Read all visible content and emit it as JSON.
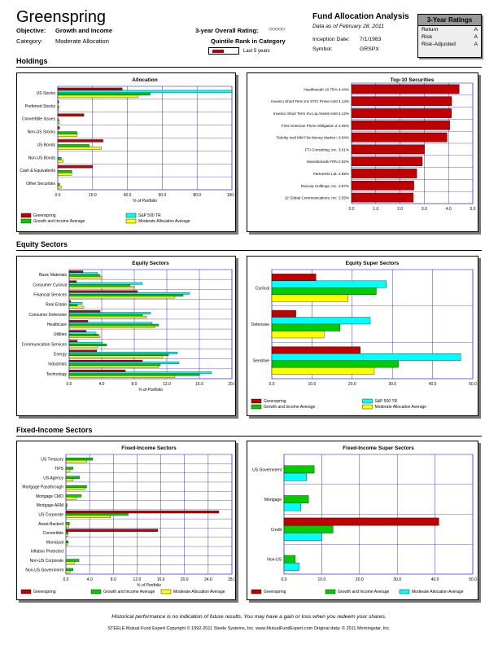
{
  "header": {
    "fund_name": "Greenspring",
    "objective_label": "Objective:",
    "objective_value": "Growth and Income",
    "category_label": "Category:",
    "category_value": "Moderate Allocation",
    "overall_rating_label": "3-year Overall Rating:",
    "overall_rating_stars": "○○○○○",
    "quintile_label": "Quintile Rank in Category",
    "quintile_last": "Last 5 years",
    "report_title": "Fund Allocation Analysis",
    "data_date": "Data as of February 28, 2011",
    "inception_label": "Inception Date:",
    "inception_value": "7/1/1983",
    "symbol_label": "Symbol:",
    "symbol_value": "GRSPX"
  },
  "ratings": {
    "title": "3-Year Ratings",
    "rows": [
      {
        "label": "Return",
        "value": "A"
      },
      {
        "label": "Risk",
        "value": "A"
      },
      {
        "label": "Risk-Adjusted",
        "value": "A"
      }
    ]
  },
  "sections": {
    "holdings": "Holdings",
    "equity": "Equity Sectors",
    "fixed": "Fixed-Income Sectors"
  },
  "colors": {
    "greenspring": "#c00000",
    "sp500": "#00ffff",
    "growth_income": "#00cc00",
    "moderate": "#ffff00"
  },
  "footer": {
    "disclaimer": "Historical performance is no indication of future results.  You may have a gain or loss when you redeem your shares.",
    "credits": "STEELE Mutual Fund Expert        Copyright © 1992-2011 Steele Systems, Inc.        www.MutualFundExpert.com        Original data: © 2011 Morningstar, Inc."
  },
  "chart_data": [
    {
      "id": "allocation",
      "type": "bar",
      "orientation": "horizontal",
      "title": "Allocation",
      "xlabel": "% of Portfolio",
      "xlim": [
        0,
        100
      ],
      "xticks": [
        "0.0",
        "20.0",
        "40.0",
        "60.0",
        "80.0",
        "100.0"
      ],
      "categories": [
        "US Stocks",
        "Preferred Stocks",
        "Convertible Issues",
        "Non-US Stocks",
        "US Bonds",
        "Non-US Bonds",
        "Cash & Equivalents",
        "Other Securities"
      ],
      "series": [
        {
          "name": "Greenspring",
          "color": "#c00000",
          "values": [
            37,
            0.5,
            15,
            1,
            26,
            0,
            20,
            0
          ]
        },
        {
          "name": "S&P 500 TR",
          "color": "#00ffff",
          "values": [
            100,
            0,
            0,
            0,
            0,
            0,
            0,
            0
          ]
        },
        {
          "name": "Growth and Income Average",
          "color": "#00cc00",
          "values": [
            53,
            0.5,
            0.5,
            11,
            18,
            2,
            8,
            1
          ]
        },
        {
          "name": "Moderate Allocation Average",
          "color": "#ffff00",
          "values": [
            46,
            0.5,
            1,
            11,
            25,
            3,
            8,
            2
          ]
        }
      ],
      "legend": [
        "Greenspring",
        "S&P 500 TR",
        "Growth and Income Average",
        "Moderate Allocation Average"
      ]
    },
    {
      "id": "top10",
      "type": "bar",
      "orientation": "horizontal",
      "title": "Top-10 Securities",
      "xlim": [
        0,
        5
      ],
      "xticks": [
        "0.0",
        "1.0",
        "2.0",
        "3.0",
        "4.0",
        "5.0"
      ],
      "categories": [
        "Healthsouth 10.75% 4.44%",
        "Invesco Short Term Inv STIC Prime Instl 4.13%",
        "Invesco Short Term Inv Liq Assets Instl 4.12%",
        "First American Prime Obligation Z 4.05%",
        "Fidelity Instl MM Fds Money Market I 3.94%",
        "FTI Consulting, Inc.  3.01%",
        "Hanesbrands FRN 2.92%",
        "PartnerRe Ltd.  2.69%",
        "Raicorp Holdings, Inc.  2.57%",
        "J2 Global Communications, Inc.  2.55%"
      ],
      "series": [
        {
          "name": "Greenspring",
          "color": "#c00000",
          "values": [
            4.44,
            4.13,
            4.12,
            4.05,
            3.94,
            3.01,
            2.92,
            2.69,
            2.57,
            2.55
          ]
        }
      ]
    },
    {
      "id": "equity",
      "type": "bar",
      "orientation": "horizontal",
      "title": "Equity Sectors",
      "xlabel": "% of Portfolio",
      "xlim": [
        0,
        20
      ],
      "xticks": [
        "0.0",
        "4.0",
        "8.0",
        "12.0",
        "16.0",
        "20.0"
      ],
      "categories": [
        "Basic Materials",
        "Consumer Cyclical",
        "Financial Services",
        "Real Estate",
        "Consumer Defensive",
        "Healthcare",
        "Utilities",
        "Communication Services",
        "Energy",
        "Industrials",
        "Technology"
      ],
      "series": [
        {
          "name": "Greenspring",
          "color": "#c00000",
          "values": [
            1.7,
            0.9,
            8.4,
            0.2,
            3.8,
            2.3,
            2.1,
            1.0,
            3.4,
            9.0,
            6.9
          ]
        },
        {
          "name": "S&P 500 TR",
          "color": "#00ffff",
          "values": [
            3.5,
            9.0,
            14.8,
            1.6,
            10.0,
            10.2,
            3.3,
            4.1,
            13.3,
            13.5,
            17.5
          ]
        },
        {
          "name": "Growth and Income Average",
          "color": "#00cc00",
          "values": [
            3.8,
            7.5,
            14.0,
            1.0,
            9.0,
            11.0,
            3.6,
            4.6,
            12.2,
            11.2,
            16.0
          ]
        },
        {
          "name": "Moderate Allocation Average",
          "color": "#ffff00",
          "values": [
            4.0,
            8.0,
            13.0,
            1.8,
            9.5,
            10.5,
            3.8,
            3.5,
            11.5,
            11.0,
            13.0
          ]
        }
      ]
    },
    {
      "id": "equity_super",
      "type": "bar",
      "orientation": "horizontal",
      "title": "Equity Super Sectors",
      "xlim": [
        0,
        50
      ],
      "xticks": [
        "0.0",
        "10.0",
        "20.0",
        "30.0",
        "40.0",
        "50.0"
      ],
      "categories": [
        "Cyclical",
        "Defensive",
        "Sensitive"
      ],
      "series": [
        {
          "name": "Greenspring",
          "color": "#c00000",
          "values": [
            11,
            6,
            22
          ]
        },
        {
          "name": "S&P 500 TR",
          "color": "#00ffff",
          "values": [
            28.5,
            24.5,
            47
          ]
        },
        {
          "name": "Growth and Income Average",
          "color": "#00cc00",
          "values": [
            26,
            17,
            31.5
          ]
        },
        {
          "name": "Moderate Allocation Average",
          "color": "#ffff00",
          "values": [
            19,
            13,
            25.5
          ]
        }
      ],
      "legend": [
        "Greenspring",
        "S&P 500 TR",
        "Growth and Income Average",
        "Moderate Allocation Average"
      ]
    },
    {
      "id": "fixed",
      "type": "bar",
      "orientation": "horizontal",
      "title": "Fixed-Income Sectors",
      "xlabel": "% of Portfolio",
      "xlim": [
        0,
        28
      ],
      "xticks": [
        "0.0",
        "4.0",
        "8.0",
        "12.0",
        "16.0",
        "20.0",
        "24.0",
        "28.0"
      ],
      "categories": [
        "US Treasury",
        "TIPS",
        "US Agency",
        "Mortgage Passthrough",
        "Mortgage CMO",
        "Mortgage ARM",
        "US Corporate",
        "Asset-Backed",
        "Convertible",
        "Municipal",
        "Inflation Protected",
        "Non-US Corporate",
        "Non-US Government"
      ],
      "series": [
        {
          "name": "Greenspring",
          "color": "#c00000",
          "values": [
            0,
            0,
            0,
            0,
            0,
            0,
            25.8,
            0,
            15.5,
            0,
            0,
            0,
            0
          ]
        },
        {
          "name": "Growth and Income Average",
          "color": "#00cc00",
          "values": [
            4.5,
            1.2,
            2.3,
            3.5,
            2.6,
            0.2,
            10.5,
            0.6,
            0.4,
            0.4,
            0,
            2.2,
            1.2
          ]
        },
        {
          "name": "Moderate Allocation Average",
          "color": "#ffff00",
          "values": [
            3.5,
            0.7,
            1.2,
            3.2,
            1.8,
            0.1,
            7.5,
            0.5,
            0.3,
            0.3,
            0,
            1.5,
            0.7
          ]
        }
      ],
      "legend": [
        "Greenspring",
        "Growth and Income Average",
        "Moderate Allocation Average"
      ]
    },
    {
      "id": "fixed_super",
      "type": "bar",
      "orientation": "horizontal",
      "title": "Fixed-Income Super Sectors",
      "xlim": [
        0,
        50
      ],
      "xticks": [
        "0.0",
        "10.0",
        "20.0",
        "30.0",
        "40.0",
        "50.0"
      ],
      "categories": [
        "US Government",
        "Mortgage",
        "Credit",
        "Non-US"
      ],
      "series": [
        {
          "name": "Greenspring",
          "color": "#c00000",
          "values": [
            0,
            0,
            41,
            0
          ]
        },
        {
          "name": "Growth and Income Average",
          "color": "#00cc00",
          "values": [
            8,
            6.5,
            13,
            3
          ]
        },
        {
          "name": "Moderate Allocation Average",
          "color": "#00ffff",
          "values": [
            6,
            4.5,
            10,
            4
          ]
        }
      ],
      "legend": [
        "Greenspring",
        "Growth and Income Average",
        "Moderate Allocation Average"
      ]
    }
  ]
}
